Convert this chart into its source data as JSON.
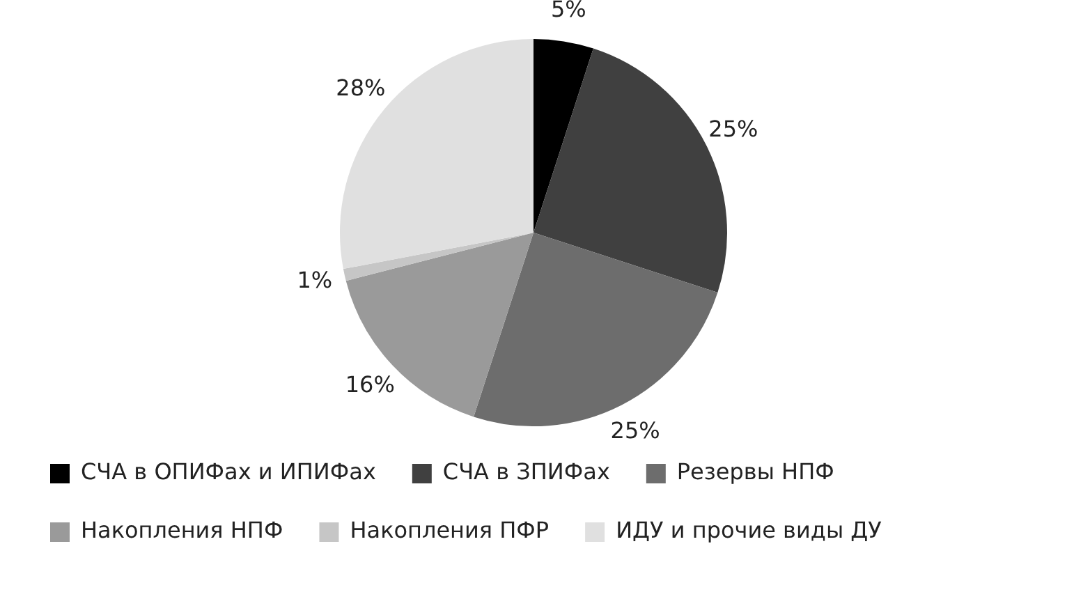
{
  "chart_data": {
    "type": "pie",
    "categories": [
      "СЧА в ОПИФах и ИПИФах",
      "СЧА в ЗПИФах",
      "Резервы НПФ",
      "Накопления НПФ",
      "Накопления ПФР",
      "ИДУ и прочие виды ДУ"
    ],
    "values": [
      5,
      25,
      25,
      16,
      1,
      28
    ],
    "colors": [
      "#000000",
      "#404040",
      "#6d6d6d",
      "#9a9a9a",
      "#c6c6c6",
      "#e0e0e0"
    ],
    "value_labels": [
      "5%",
      "25%",
      "25%",
      "16%",
      "1%",
      "28%"
    ],
    "legend": "bottom"
  }
}
